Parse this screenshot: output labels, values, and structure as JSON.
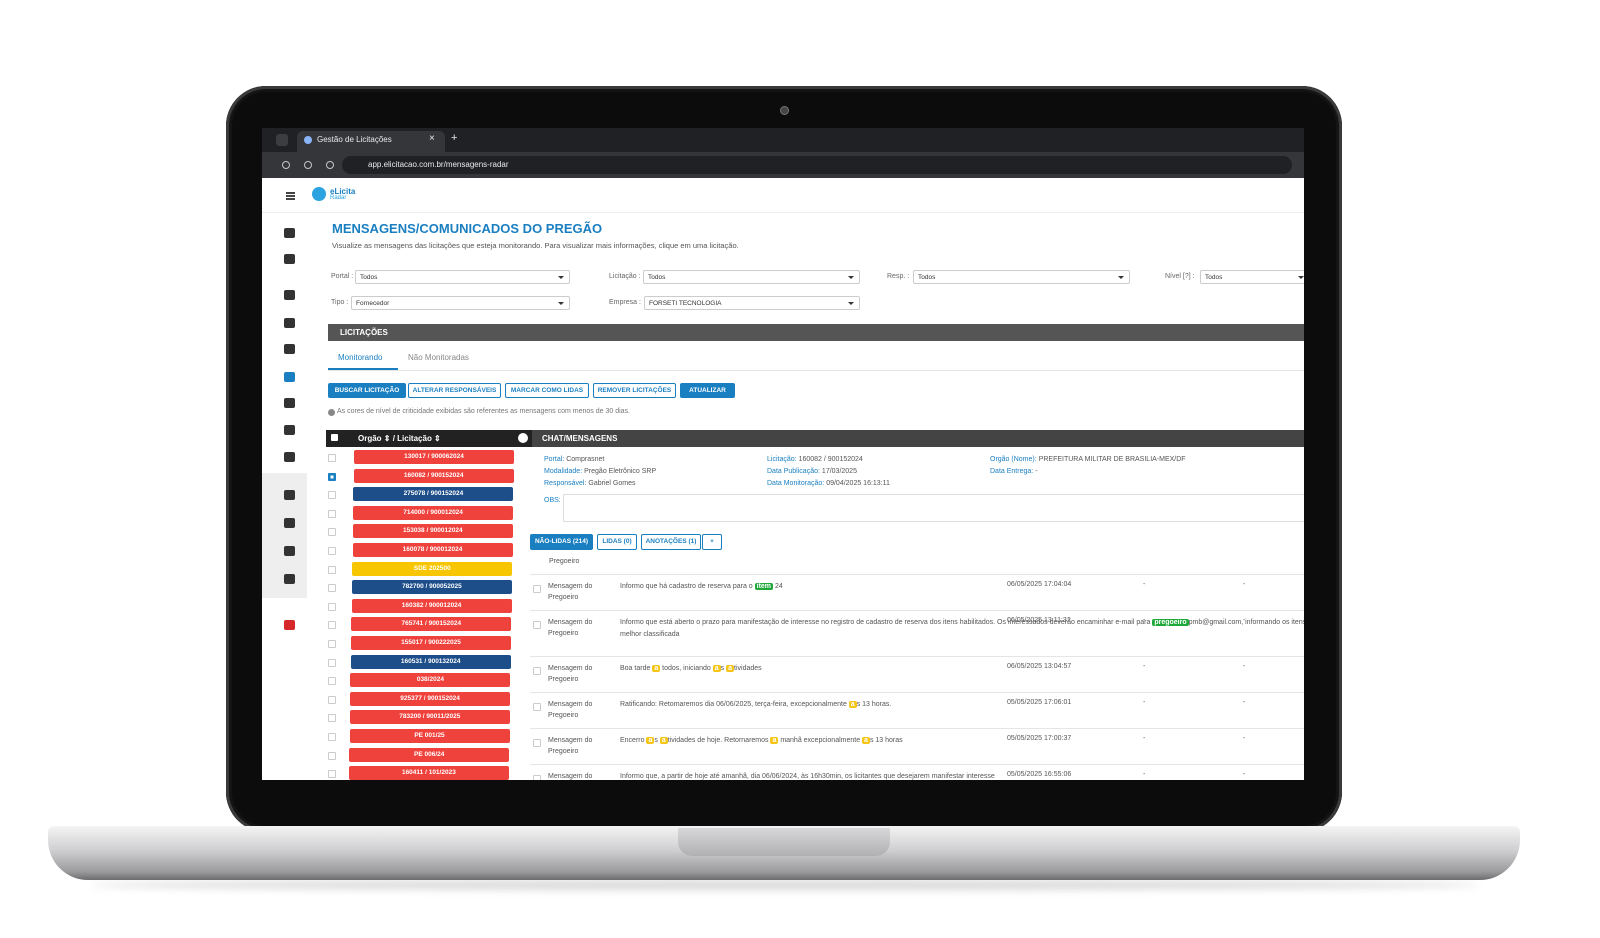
{
  "browser": {
    "tab_title": "Gestão de Licitações",
    "tab_close": "×",
    "new_tab": "+",
    "url": "app.elicitacao.com.br/mensagens-radar"
  },
  "logo": {
    "name": "eLicita",
    "sub": "Radar"
  },
  "header": {
    "title": "MENSAGENS/COMUNICADOS DO PREGÃO",
    "subtitle": "Visualize as mensagens das licitações que esteja monitorando. Para visualizar mais informações, clique em uma licitação."
  },
  "filters": [
    {
      "label": "Portal :",
      "value": "Todos"
    },
    {
      "label": "Licitação :",
      "value": "Todos"
    },
    {
      "label": "Resp. :",
      "value": "Todos"
    },
    {
      "label": "Nível [?] :",
      "value": "Todos"
    },
    {
      "label": "Tipo :",
      "value": "Fornecedor"
    },
    {
      "label": "Empresa :",
      "value": "FORSETI TECNOLOGIA"
    }
  ],
  "section": "LICITAÇÕES",
  "tabs": [
    "Monitorando",
    "Não Monitoradas"
  ],
  "buttons": [
    "BUSCAR LICITAÇÃO",
    "ALTERAR RESPONSÁVEIS",
    "MARCAR COMO LIDAS",
    "REMOVER LICITAÇÕES",
    "ATUALIZAR"
  ],
  "note": "As cores de nível de criticidade exibidas são referentes as mensagens com menos de 30 dias.",
  "list_header": "Orgão ⇕ / Licitação ⇕",
  "licitacoes": [
    {
      "label": "130017 / 900062024",
      "color": "#f0423d"
    },
    {
      "label": "160082 / 900152024",
      "color": "#f0423d",
      "checked": true
    },
    {
      "label": "275078 / 900152024",
      "color": "#1d4e89"
    },
    {
      "label": "714000 / 900012024",
      "color": "#f0423d"
    },
    {
      "label": "153038 / 900012024",
      "color": "#f0423d"
    },
    {
      "label": "160078 / 900012024",
      "color": "#f0423d"
    },
    {
      "label": "SDE 202500",
      "color": "#f7c600"
    },
    {
      "label": "782700 / 900052025",
      "color": "#1d4e89"
    },
    {
      "label": "160382 / 900012024",
      "color": "#f0423d"
    },
    {
      "label": "765741 / 900152024",
      "color": "#f0423d"
    },
    {
      "label": "155017 / 900222025",
      "color": "#f0423d"
    },
    {
      "label": "160531 / 900132024",
      "color": "#1d4e89"
    },
    {
      "label": "038/2024",
      "color": "#f0423d"
    },
    {
      "label": "925377 / 900152024",
      "color": "#f0423d"
    },
    {
      "label": "783200 / 90011/2025",
      "color": "#f0423d"
    },
    {
      "label": "PE 001/25",
      "color": "#f0423d"
    },
    {
      "label": "PE 006/24",
      "color": "#f0423d"
    },
    {
      "label": "160411 / 101/2023",
      "color": "#f0423d"
    }
  ],
  "chat": {
    "title": "CHAT/MENSAGENS",
    "info": [
      {
        "label": "Portal:",
        "value": "Comprasnet"
      },
      {
        "label": "Modalidade:",
        "value": "Pregão Eletrônico SRP"
      },
      {
        "label": "Responsável:",
        "value": "Gabriel Gomes"
      },
      {
        "label": "Licitação:",
        "value": "160082 / 900152024"
      },
      {
        "label": "Data Publicação:",
        "value": "17/03/2025"
      },
      {
        "label": "Data Monitoração:",
        "value": "09/04/2025 16:13:11"
      },
      {
        "label": "Orgão (Nome):",
        "value": "PREFEITURA MILITAR DE BRASILIA-MEX/DF"
      },
      {
        "label": "Data Entrega:",
        "value": "-"
      }
    ],
    "obs": "OBS:",
    "tabs": [
      "NÃO-LIDAS (214)",
      "LIDAS (0)",
      "ANOTAÇÕES (1)",
      "+"
    ],
    "column": "Pregoeiro",
    "messages": [
      {
        "from": "Mensagem do Pregoeiro",
        "parts": [
          "Informo que há cadastro de reserva para o ",
          {
            "text": "item",
            "highlight": "#1fa83a"
          },
          " 24"
        ],
        "date": "06/05/2025 17:04:04",
        "c1": "-",
        "c2": "-"
      },
      {
        "from": "Mensagem do Pregoeiro",
        "parts": [
          "Informo que está aberto o prazo para manifestação de interesse no registro de cadastro de reserva dos itens habilitados. Os interessados deverão encaminhar e-mail para ",
          {
            "text": "pregoeiro",
            "highlight": "#1fa83a"
          },
          "pmb@gmail.com, informando os itens de interesse e seus respectivos lances, mantendo o valor ofertado ou igualando-se ao valor da ",
          {
            "text": "proposta",
            "highlight": "#e53935"
          },
          " melhor classificada"
        ],
        "date": "06/05/2025 13:11:32",
        "c1": "-",
        "c2": "-"
      },
      {
        "from": "Mensagem do Pregoeiro",
        "parts": [
          "Boa tarde ",
          {
            "text": "a",
            "highlight": "#f5c518"
          },
          " todos, iniciando ",
          {
            "text": "a",
            "highlight": "#f5c518"
          },
          "s ",
          {
            "text": "a",
            "highlight": "#f5c518"
          },
          "tividades"
        ],
        "date": "06/05/2025 13:04:57",
        "c1": "-",
        "c2": "-"
      },
      {
        "from": "Mensagem do Pregoeiro",
        "parts": [
          "Ratificando: Retomaremos dia 06/06/2025, terça-feira, excepcionalmente ",
          {
            "text": "a",
            "highlight": "#f5c518"
          },
          "s 13 horas."
        ],
        "date": "05/05/2025 17:06:01",
        "c1": "-",
        "c2": "-"
      },
      {
        "from": "Mensagem do Pregoeiro",
        "parts": [
          "Encerro ",
          {
            "text": "a",
            "highlight": "#f5c518"
          },
          "s ",
          {
            "text": "a",
            "highlight": "#f5c518"
          },
          "tividades de hoje. Retornaremos ",
          {
            "text": "a",
            "highlight": "#f5c518"
          },
          " manhã excepcionalmente ",
          {
            "text": "a",
            "highlight": "#f5c518"
          },
          "s 13 horas"
        ],
        "date": "05/05/2025 17:00:37",
        "c1": "-",
        "c2": "-"
      },
      {
        "from": "Mensagem do Pregoeiro",
        "parts": [
          "Informo que, a partir de hoje até amanhã, dia 06/06/2024, às 16h30min, os licitantes que desejarem manifestar interesse"
        ],
        "date": "05/05/2025 16:55:06",
        "c1": "-",
        "c2": "-"
      }
    ]
  }
}
